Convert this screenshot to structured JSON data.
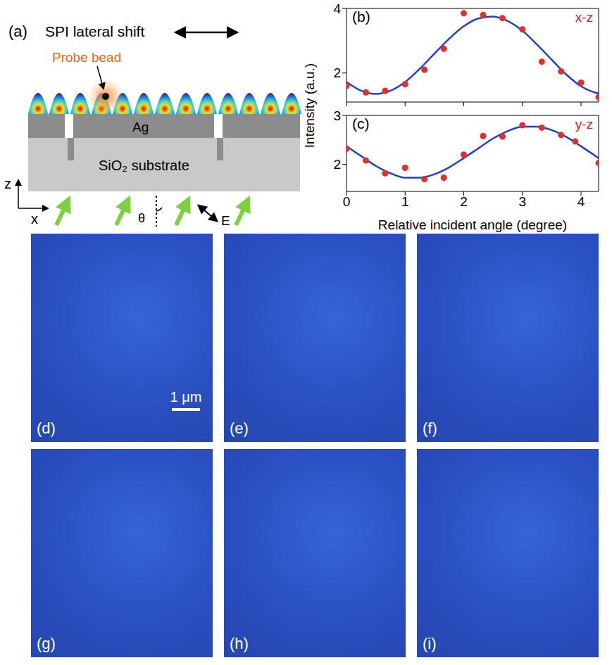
{
  "diagram": {
    "letter": "(a)",
    "title": "SPI lateral shift",
    "probe": "Probe bead",
    "metal": "Ag",
    "substrate": "SiO₂ substrate",
    "axis_z": "z",
    "axis_x": "x",
    "angle": "θ",
    "field": "E"
  },
  "chart_data": [
    {
      "type": "line",
      "letter": "(b)",
      "annotation": "x-z",
      "ylabel": "Intensity (a.u.)",
      "xlim": [
        0,
        4.3
      ],
      "xticks": [
        0,
        1,
        2,
        3,
        4
      ],
      "ylim": [
        1.1,
        4
      ],
      "yticks": [
        2,
        4
      ],
      "tick_labels": "y",
      "series": [
        {
          "type": "scatter",
          "marker": "circle",
          "color": "#e0302a",
          "x": [
            0,
            0.33,
            0.66,
            1,
            1.33,
            1.66,
            2,
            2.33,
            2.66,
            3,
            3.33,
            3.66,
            4,
            4.3
          ],
          "values": [
            1.6,
            1.4,
            1.45,
            1.65,
            2.1,
            2.75,
            3.85,
            3.8,
            3.7,
            3.35,
            2.35,
            2.05,
            1.7,
            1.25
          ]
        },
        {
          "type": "line",
          "color": "#2040c8",
          "x": [
            0,
            0.25,
            0.5,
            0.75,
            1,
            1.25,
            1.5,
            1.75,
            2,
            2.25,
            2.5,
            2.75,
            3,
            3.25,
            3.5,
            3.75,
            4,
            4.25,
            4.3
          ],
          "values": [
            1.72,
            1.45,
            1.35,
            1.45,
            1.72,
            2.13,
            2.6,
            3.06,
            3.45,
            3.69,
            3.75,
            3.61,
            3.31,
            2.88,
            2.41,
            1.95,
            1.59,
            1.39,
            1.37
          ]
        }
      ]
    },
    {
      "type": "line",
      "letter": "(c)",
      "annotation": "y-z",
      "xlabel": "Relative incident angle (degree)",
      "xlim": [
        0,
        4.3
      ],
      "xticks": [
        0,
        1,
        2,
        3,
        4
      ],
      "ylim": [
        1.45,
        3
      ],
      "yticks": [
        2,
        3
      ],
      "series": [
        {
          "type": "scatter",
          "marker": "circle",
          "color": "#e0302a",
          "x": [
            0,
            0.33,
            0.66,
            1,
            1.33,
            1.66,
            2,
            2.33,
            2.66,
            3,
            3.33,
            3.66,
            3.9,
            4.3
          ],
          "values": [
            2.32,
            2.08,
            1.82,
            1.93,
            1.7,
            1.73,
            2.2,
            2.58,
            2.57,
            2.8,
            2.75,
            2.6,
            2.47,
            2.03
          ]
        },
        {
          "type": "line",
          "color": "#2040c8",
          "x": [
            0,
            0.25,
            0.5,
            0.75,
            1,
            1.25,
            1.5,
            1.75,
            2,
            2.25,
            2.5,
            2.75,
            3,
            3.25,
            3.5,
            3.75,
            4,
            4.25,
            4.3
          ],
          "values": [
            2.37,
            2.17,
            1.97,
            1.82,
            1.73,
            1.73,
            1.8,
            1.94,
            2.13,
            2.33,
            2.53,
            2.68,
            2.77,
            2.77,
            2.7,
            2.56,
            2.37,
            2.17,
            2.13
          ]
        }
      ]
    }
  ],
  "images": {
    "scale_bar": "1 μm",
    "panels": [
      "(d)",
      "(e)",
      "(f)",
      "(g)",
      "(h)",
      "(i)"
    ]
  }
}
